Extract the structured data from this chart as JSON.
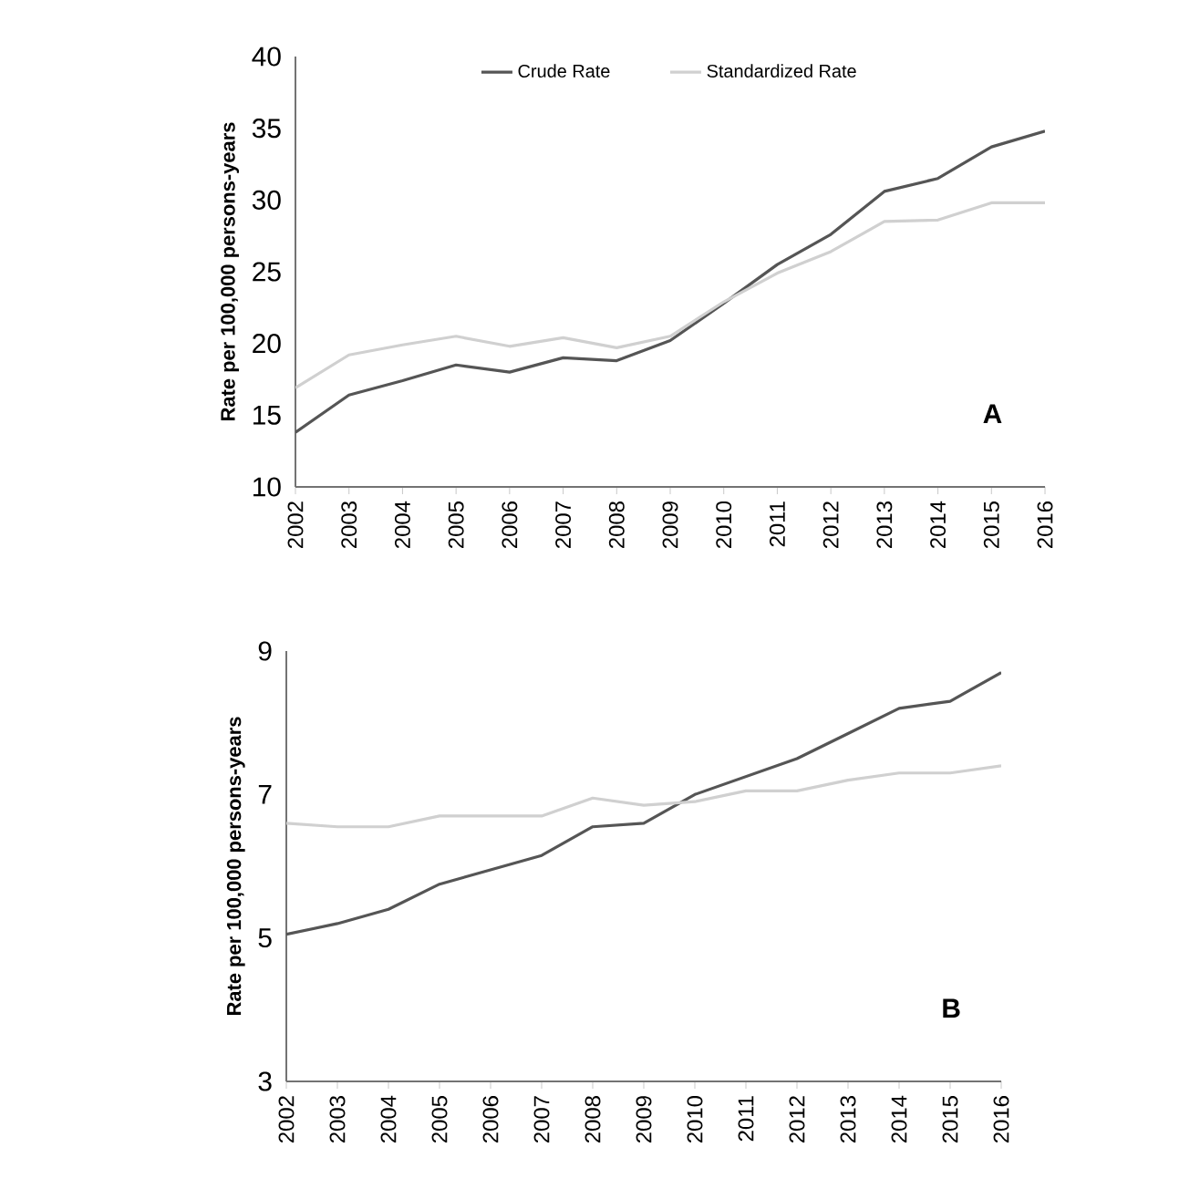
{
  "chart_data": [
    {
      "type": "line",
      "ylabel": "Rate per 100,000 persons-years",
      "categories": [
        "2002",
        "2003",
        "2004",
        "2005",
        "2006",
        "2007",
        "2008",
        "2009",
        "2010",
        "2011",
        "2012",
        "2013",
        "2014",
        "2015",
        "2016"
      ],
      "ylim": [
        10,
        40
      ],
      "yticks": [
        10,
        15,
        20,
        25,
        30,
        35,
        40
      ],
      "legend": "top",
      "annotations": [
        "A"
      ],
      "series": [
        {
          "name": "Crude Rate",
          "color": "#555555",
          "values": [
            13.8,
            16.4,
            17.4,
            18.5,
            18.0,
            19.0,
            18.8,
            20.2,
            22.8,
            25.5,
            27.6,
            30.6,
            31.5,
            33.7,
            34.8
          ]
        },
        {
          "name": "Standardized Rate",
          "color": "#d0d0d0",
          "values": [
            16.9,
            19.2,
            19.9,
            20.5,
            19.8,
            20.4,
            19.7,
            20.5,
            22.9,
            24.9,
            26.4,
            28.5,
            28.6,
            29.8,
            29.8
          ]
        }
      ]
    },
    {
      "type": "line",
      "ylabel": "Rate per 100,000 persons-years",
      "categories": [
        "2002",
        "2003",
        "2004",
        "2005",
        "2006",
        "2007",
        "2008",
        "2009",
        "2010",
        "2011",
        "2012",
        "2013",
        "2014",
        "2015",
        "2016"
      ],
      "ylim": [
        3,
        9
      ],
      "yticks": [
        3,
        5,
        7,
        9
      ],
      "annotations": [
        "B"
      ],
      "series": [
        {
          "color": "#555555",
          "values": [
            5.05,
            5.2,
            5.4,
            5.75,
            5.95,
            6.15,
            6.55,
            6.6,
            7.0,
            7.25,
            7.5,
            7.85,
            8.2,
            8.3,
            8.7
          ]
        },
        {
          "color": "#d0d0d0",
          "values": [
            6.6,
            6.55,
            6.55,
            6.7,
            6.7,
            6.7,
            6.95,
            6.85,
            6.9,
            7.05,
            7.05,
            7.2,
            7.3,
            7.3,
            7.4
          ]
        }
      ]
    }
  ]
}
